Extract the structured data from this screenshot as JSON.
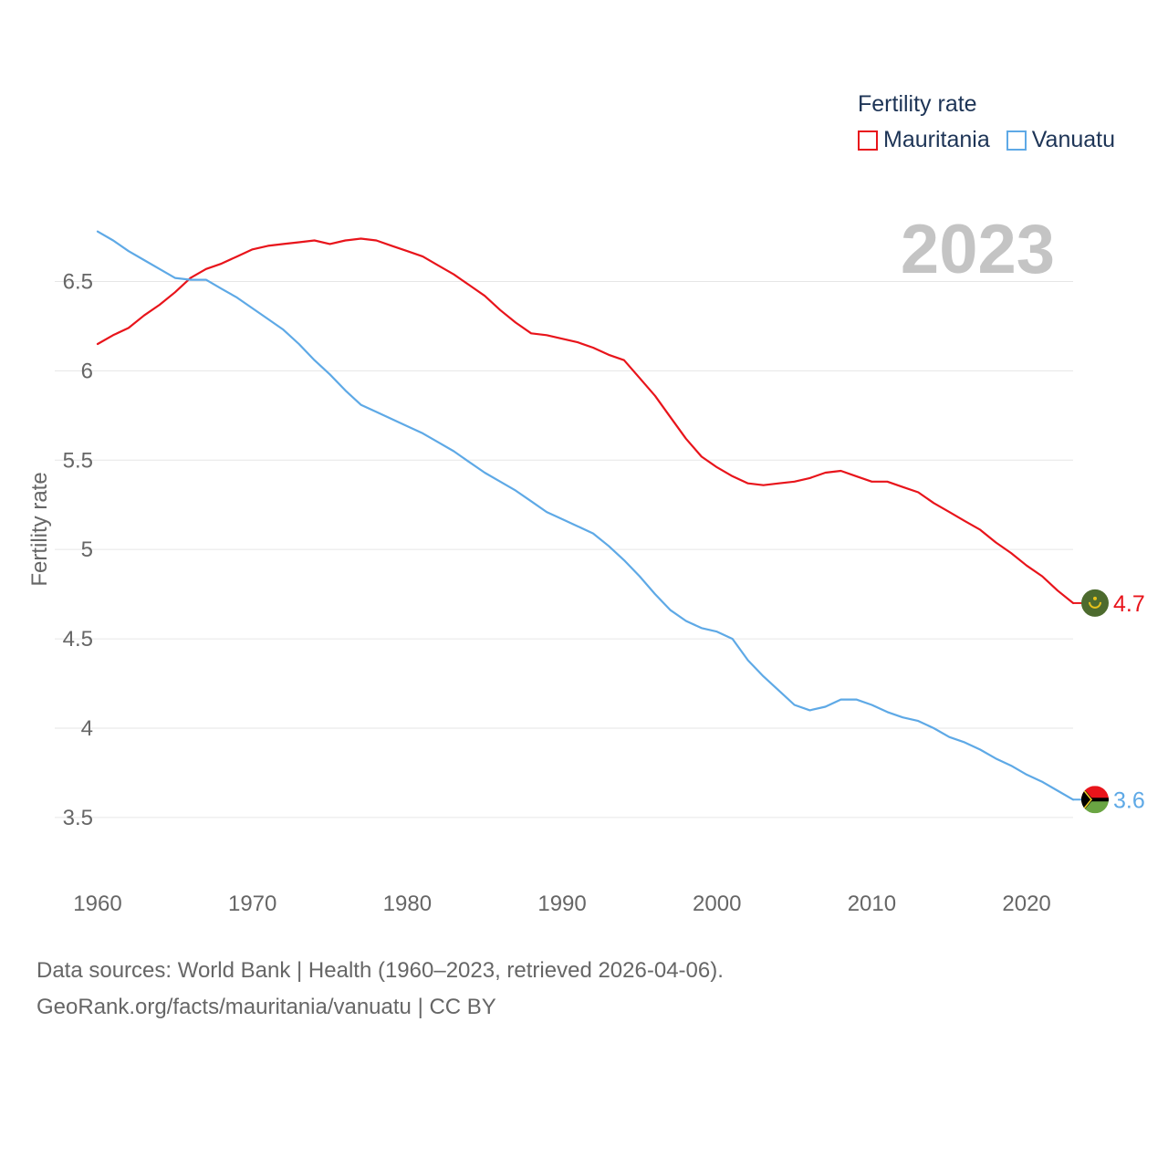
{
  "legend": {
    "title": "Fertility rate",
    "items": [
      {
        "name": "Mauritania",
        "color": "#e8141b"
      },
      {
        "name": "Vanuatu",
        "color": "#5ea9e6"
      }
    ]
  },
  "year_label": "2023",
  "footer": {
    "line1": "Data sources: World Bank | Health (1960–2023, retrieved 2026-04-06).",
    "line2": "GeoRank.org/facts/mauritania/vanuatu | CC BY"
  },
  "chart_data": {
    "type": "line",
    "title": "Fertility rate",
    "xlabel": "",
    "ylabel": "Fertility rate",
    "xlim": [
      1960,
      2023
    ],
    "ylim": [
      3.3,
      6.85
    ],
    "xticks": [
      1960,
      1970,
      1980,
      1990,
      2000,
      2010,
      2020
    ],
    "yticks": [
      3.5,
      4,
      4.5,
      5,
      5.5,
      6,
      6.5
    ],
    "ytick_labels": [
      "3.5",
      "4",
      "4.5",
      "5",
      "5.5",
      "6",
      "6.5"
    ],
    "grid": true,
    "x": [
      1960,
      1961,
      1962,
      1963,
      1964,
      1965,
      1966,
      1967,
      1968,
      1969,
      1970,
      1971,
      1972,
      1973,
      1974,
      1975,
      1976,
      1977,
      1978,
      1979,
      1980,
      1981,
      1982,
      1983,
      1984,
      1985,
      1986,
      1987,
      1988,
      1989,
      1990,
      1991,
      1992,
      1993,
      1994,
      1995,
      1996,
      1997,
      1998,
      1999,
      2000,
      2001,
      2002,
      2003,
      2004,
      2005,
      2006,
      2007,
      2008,
      2009,
      2010,
      2011,
      2012,
      2013,
      2014,
      2015,
      2016,
      2017,
      2018,
      2019,
      2020,
      2021,
      2022,
      2023
    ],
    "series": [
      {
        "name": "Mauritania",
        "color": "#e8141b",
        "end_label": "4.7",
        "values": [
          6.15,
          6.2,
          6.24,
          6.31,
          6.37,
          6.44,
          6.52,
          6.57,
          6.6,
          6.64,
          6.68,
          6.7,
          6.71,
          6.72,
          6.73,
          6.71,
          6.73,
          6.74,
          6.73,
          6.7,
          6.67,
          6.64,
          6.59,
          6.54,
          6.48,
          6.42,
          6.34,
          6.27,
          6.21,
          6.2,
          6.18,
          6.16,
          6.13,
          6.09,
          6.06,
          5.96,
          5.86,
          5.74,
          5.62,
          5.52,
          5.46,
          5.41,
          5.37,
          5.36,
          5.37,
          5.38,
          5.4,
          5.43,
          5.44,
          5.41,
          5.38,
          5.38,
          5.35,
          5.32,
          5.26,
          5.21,
          5.16,
          5.11,
          5.04,
          4.98,
          4.91,
          4.85,
          4.77,
          4.7
        ]
      },
      {
        "name": "Vanuatu",
        "color": "#5ea9e6",
        "end_label": "3.6",
        "values": [
          6.78,
          6.73,
          6.67,
          6.62,
          6.57,
          6.52,
          6.51,
          6.51,
          6.46,
          6.41,
          6.35,
          6.29,
          6.23,
          6.15,
          6.06,
          5.98,
          5.89,
          5.81,
          5.77,
          5.73,
          5.69,
          5.65,
          5.6,
          5.55,
          5.49,
          5.43,
          5.38,
          5.33,
          5.27,
          5.21,
          5.17,
          5.13,
          5.09,
          5.02,
          4.94,
          4.85,
          4.75,
          4.66,
          4.6,
          4.56,
          4.54,
          4.5,
          4.38,
          4.29,
          4.21,
          4.13,
          4.1,
          4.12,
          4.16,
          4.16,
          4.13,
          4.09,
          4.06,
          4.04,
          4.0,
          3.95,
          3.92,
          3.88,
          3.83,
          3.79,
          3.74,
          3.7,
          3.65,
          3.6
        ]
      }
    ]
  }
}
